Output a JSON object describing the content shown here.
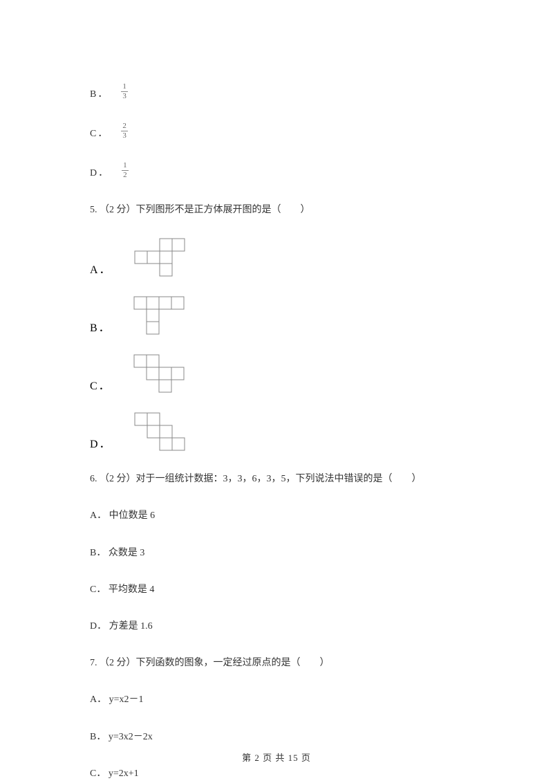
{
  "fraction_options": [
    {
      "label": "B．",
      "numerator": "1",
      "denominator": "3"
    },
    {
      "label": "C．",
      "numerator": "2",
      "denominator": "3"
    },
    {
      "label": "D．",
      "numerator": "1",
      "denominator": "2"
    }
  ],
  "q5": {
    "text": "5. （2 分）下列图形不是正方体展开图的是（　　）",
    "options": [
      "A．",
      "B．",
      "C．",
      "D．"
    ]
  },
  "q6": {
    "text": "6. （2 分）对于一组统计数据：3，3，6，3，5，下列说法中错误的是（　　）",
    "options": [
      "A． 中位数是 6",
      "B． 众数是 3",
      "C． 平均数是 4",
      "D． 方差是 1.6"
    ]
  },
  "q7": {
    "text": "7. （2 分）下列函数的图象，一定经过原点的是（　　）",
    "options": [
      "A． y=x2－1",
      "B． y=3x2－2x",
      "C． y=2x+1"
    ]
  },
  "footer": "第 2 页 共 15 页",
  "diagram": {
    "cell_size": 18,
    "stroke_color": "#888888",
    "stroke_width": 1,
    "nets": {
      "A": [
        [
          0,
          1
        ],
        [
          1,
          1
        ],
        [
          2,
          1
        ],
        [
          2,
          0
        ],
        [
          3,
          0
        ],
        [
          2,
          2
        ]
      ],
      "B": [
        [
          0,
          0
        ],
        [
          1,
          0
        ],
        [
          2,
          0
        ],
        [
          3,
          0
        ],
        [
          1,
          1
        ],
        [
          1,
          2
        ]
      ],
      "C": [
        [
          0,
          0
        ],
        [
          1,
          0
        ],
        [
          1,
          1
        ],
        [
          2,
          1
        ],
        [
          3,
          1
        ],
        [
          2,
          2
        ]
      ],
      "D": [
        [
          0,
          0
        ],
        [
          1,
          0
        ],
        [
          1,
          1
        ],
        [
          2,
          1
        ],
        [
          2,
          2
        ],
        [
          3,
          2
        ]
      ]
    }
  }
}
